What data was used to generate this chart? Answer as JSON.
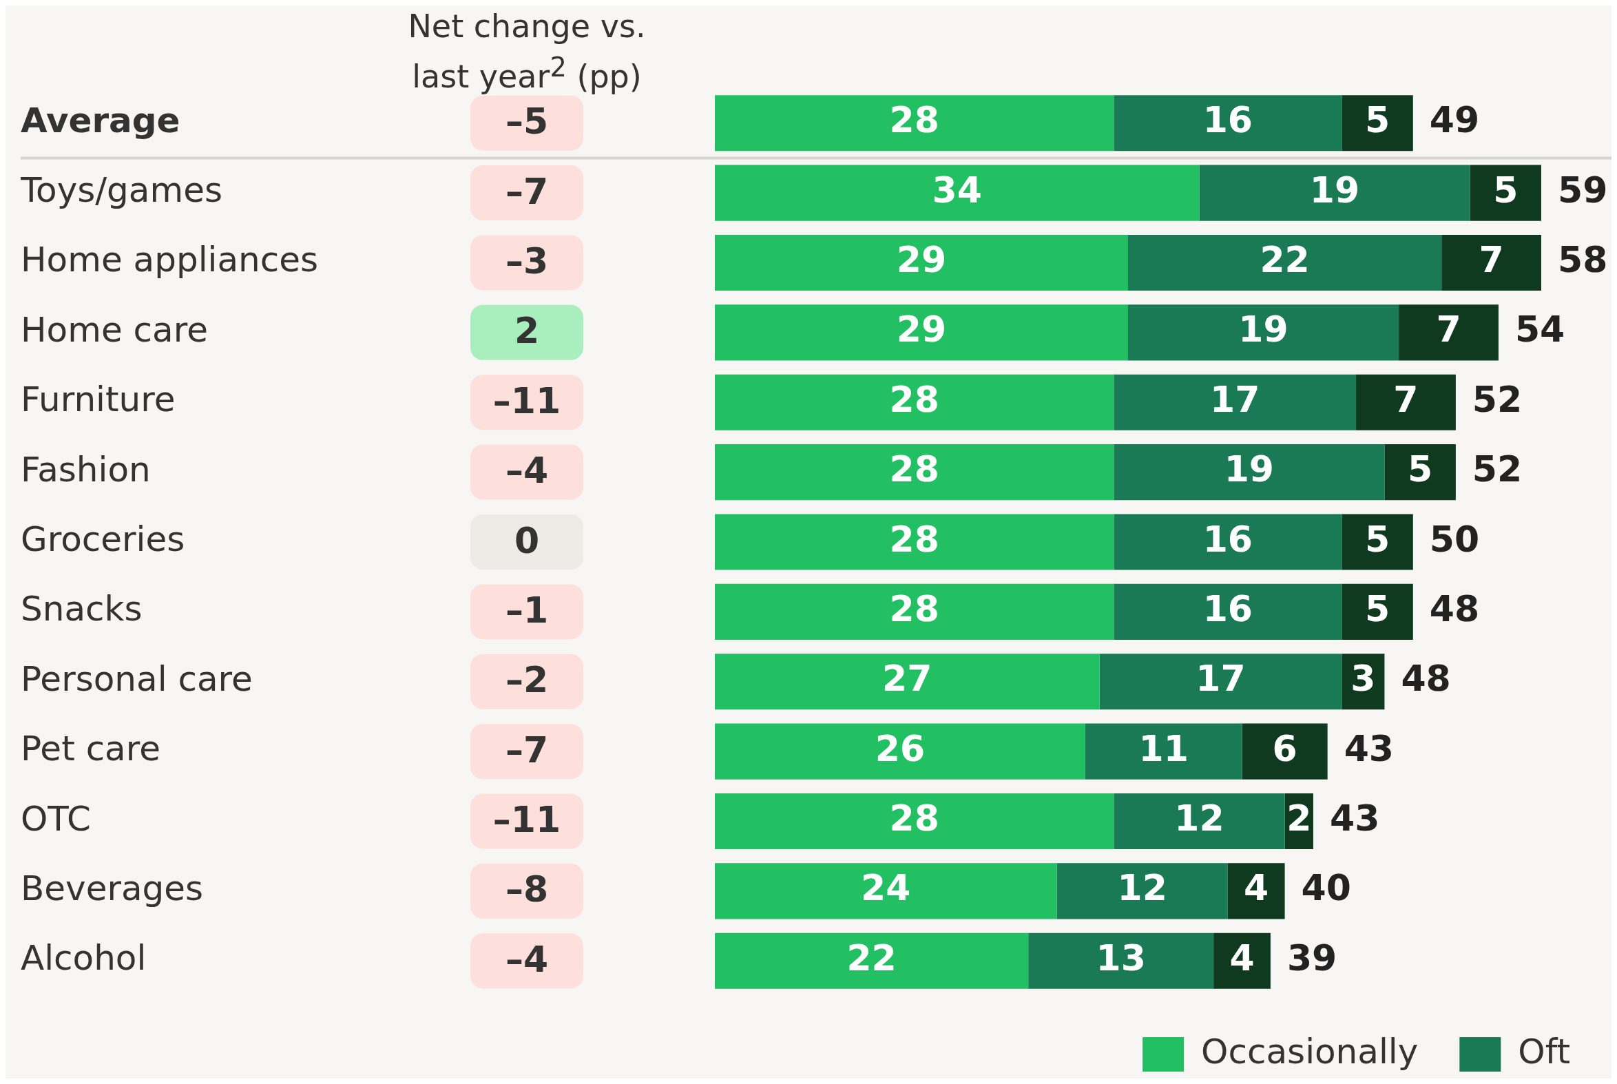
{
  "chart_data": {
    "type": "bar",
    "orientation": "horizontal",
    "stacked": true,
    "data_labels": true,
    "legend": "bottom right",
    "categories": [
      "Average",
      "Toys/games",
      "Home appliances",
      "Home care",
      "Furniture",
      "Fashion",
      "Groceries",
      "Snacks",
      "Personal care",
      "Pet care",
      "OTC",
      "Beverages",
      "Alcohol"
    ],
    "series": [
      {
        "name": "Occasionally",
        "color": "#22c062",
        "values": [
          28,
          34,
          29,
          29,
          28,
          28,
          28,
          28,
          27,
          26,
          28,
          24,
          22
        ]
      },
      {
        "name": "Oft",
        "color": "#1a7a56",
        "values": [
          16,
          19,
          22,
          19,
          17,
          19,
          16,
          16,
          17,
          11,
          12,
          12,
          13
        ]
      },
      {
        "color": "#0f3a20",
        "values": [
          5,
          5,
          7,
          7,
          7,
          5,
          5,
          5,
          3,
          6,
          2,
          4,
          4
        ]
      }
    ],
    "totals": [
      "49",
      "59",
      "58",
      "54",
      "52",
      "52",
      "50",
      "48",
      "48",
      "43",
      "43",
      "40",
      "39"
    ],
    "annotations": [
      "Net change vs. last year$^{2}$ (pp)",
      "–5",
      "–7",
      "–3",
      "2",
      "–11",
      "–4",
      "0",
      "–1",
      "–2",
      "–7",
      "–11",
      "–8",
      "–4"
    ]
  }
}
